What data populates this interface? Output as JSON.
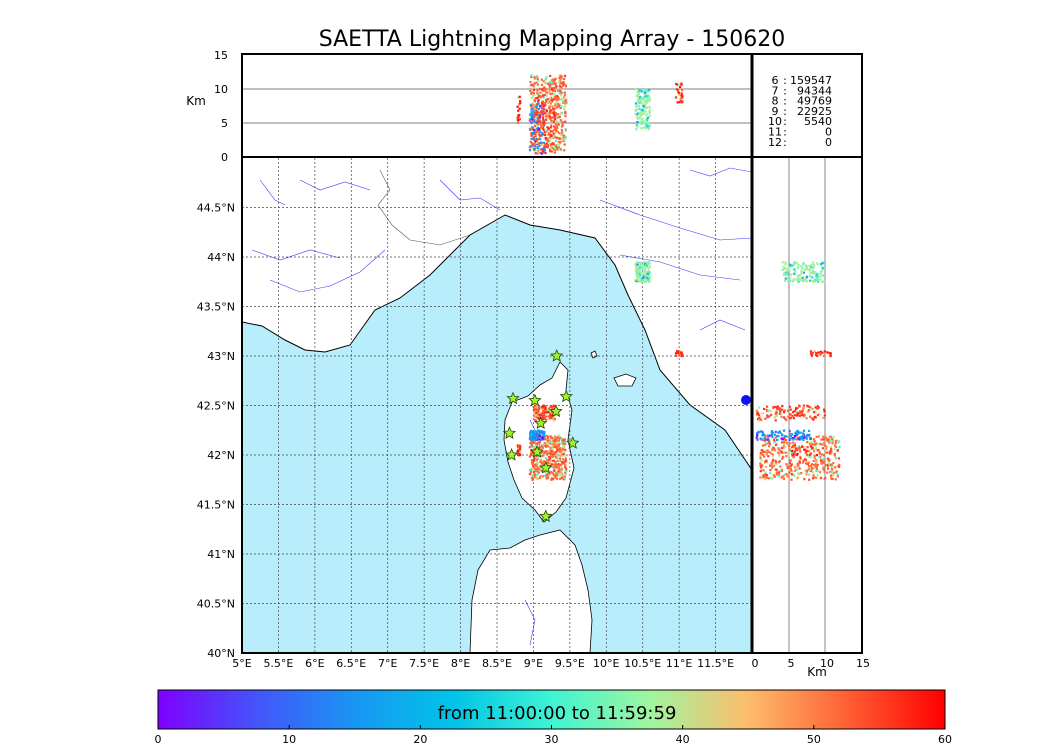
{
  "chart_data": {
    "type": "scatter",
    "title": "SAETTA Lightning Mapping Array - 150620",
    "time_range_label": "from 11:00:00 to 11:59:59",
    "map": {
      "lon_range": [
        5,
        12
      ],
      "lat_range": [
        40,
        45
      ],
      "lon_ticks": [
        "5°E",
        "5.5°E",
        "6°E",
        "6.5°E",
        "7°E",
        "7.5°E",
        "8°E",
        "8.5°E",
        "9°E",
        "9.5°E",
        "10°E",
        "10.5°E",
        "11°E",
        "11.5°E"
      ],
      "lat_ticks": [
        "40°N",
        "40.5°N",
        "41°N",
        "41.5°N",
        "42°N",
        "42.5°N",
        "43°N",
        "43.5°N",
        "44°N",
        "44.5°N"
      ],
      "sea_color": "#b8eefc",
      "land_color": "#ffffff",
      "coast_color": "#000000",
      "river_color": "#3a3aff",
      "grid": true
    },
    "altitude_panel_top": {
      "ylabel": "Km",
      "y_ticks": [
        "0",
        "5",
        "10",
        "15"
      ],
      "ylim": [
        0,
        15
      ]
    },
    "altitude_panel_side": {
      "xlabel": "Km",
      "x_ticks": [
        "0",
        "5",
        "10",
        "15"
      ],
      "xlim": [
        0,
        15
      ]
    },
    "station_counts": [
      {
        "station": "6",
        "count": "159547",
        "color": "#000000"
      },
      {
        "station": "7",
        "count": "94344",
        "color": "#e00000"
      },
      {
        "station": "8",
        "count": "49769",
        "color": "#000000"
      },
      {
        "station": "9",
        "count": "22925",
        "color": "#000000"
      },
      {
        "station": "10",
        "count": "5540",
        "color": "#000000"
      },
      {
        "station": "11",
        "count": "0",
        "color": "#000000"
      },
      {
        "station": "12",
        "count": "0",
        "color": "#000000"
      }
    ],
    "stations": [
      {
        "lon": 8.72,
        "lat": 42.57
      },
      {
        "lon": 9.02,
        "lat": 42.55
      },
      {
        "lon": 9.32,
        "lat": 43.0
      },
      {
        "lon": 9.45,
        "lat": 42.59
      },
      {
        "lon": 9.31,
        "lat": 42.44
      },
      {
        "lon": 9.1,
        "lat": 42.32
      },
      {
        "lon": 8.67,
        "lat": 42.22
      },
      {
        "lon": 9.54,
        "lat": 42.12
      },
      {
        "lon": 8.7,
        "lat": 42.0
      },
      {
        "lon": 9.05,
        "lat": 42.03
      },
      {
        "lon": 9.17,
        "lat": 41.87
      },
      {
        "lon": 9.17,
        "lat": 41.38
      }
    ],
    "clusters": [
      {
        "lon": [
          8.95,
          9.45
        ],
        "lat": [
          41.75,
          42.2
        ],
        "alt": [
          1,
          12
        ],
        "time_min": 55,
        "n": 420
      },
      {
        "lon": [
          8.95,
          9.15
        ],
        "lat": [
          42.15,
          42.25
        ],
        "alt": [
          0.5,
          8
        ],
        "time_min": 18,
        "n": 90
      },
      {
        "lon": [
          9.0,
          9.3
        ],
        "lat": [
          42.35,
          42.5
        ],
        "alt": [
          0.5,
          10
        ],
        "time_min": 58,
        "n": 120
      },
      {
        "lon": [
          10.4,
          10.6
        ],
        "lat": [
          43.75,
          43.95
        ],
        "alt": [
          4,
          10
        ],
        "time_min": 40,
        "n": 140
      },
      {
        "lon": [
          10.95,
          11.05
        ],
        "lat": [
          43.0,
          43.05
        ],
        "alt": [
          8,
          11
        ],
        "time_min": 60,
        "n": 25
      },
      {
        "lon": [
          8.78,
          8.82
        ],
        "lat": [
          42.0,
          42.1
        ],
        "alt": [
          5,
          9
        ],
        "time_min": 60,
        "n": 20
      }
    ],
    "colorbar": {
      "label": "from 11:00:00 to 11:59:59",
      "ticks": [
        "0",
        "10",
        "20",
        "30",
        "40",
        "50",
        "60"
      ],
      "range": [
        0,
        60
      ]
    }
  }
}
